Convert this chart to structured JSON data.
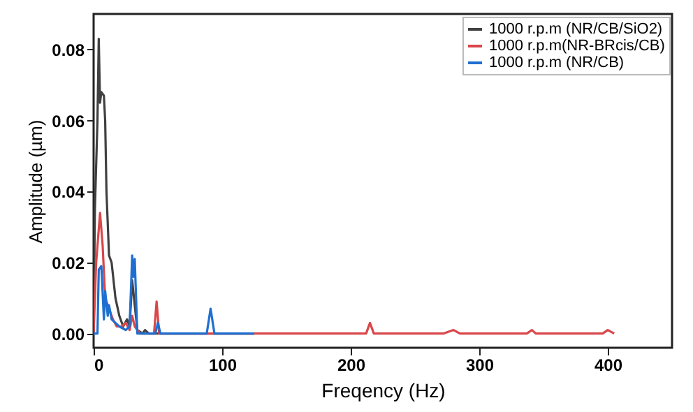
{
  "chart_data": {
    "type": "line",
    "xlabel": "Freqency (Hz)",
    "ylabel": "Amplitude (µm)",
    "xlim": [
      0,
      450
    ],
    "xticks": [
      0,
      100,
      200,
      300,
      400
    ],
    "ylim": [
      -0.004,
      0.09
    ],
    "yticks": [
      {
        "value": 0,
        "label": "0.00"
      },
      {
        "value": 0.02,
        "label": "0.02"
      },
      {
        "value": 0.04,
        "label": "0.04"
      },
      {
        "value": 0.06,
        "label": "0.06"
      },
      {
        "value": 0.08,
        "label": "0.08"
      }
    ],
    "grid": false,
    "legend": "top right",
    "marker": "none",
    "line_style": "solid",
    "series": [
      {
        "name": "1000 r.p.m (NR/CB/SiO2)",
        "color": "#404040",
        "x": [
          0,
          1,
          3,
          4,
          5,
          6,
          8,
          9,
          10,
          12,
          14,
          17,
          20,
          23,
          26,
          28,
          30,
          34,
          38,
          40,
          43,
          125
        ],
        "values": [
          0,
          0.035,
          0.06,
          0.083,
          0.065,
          0.068,
          0.067,
          0.06,
          0.04,
          0.022,
          0.02,
          0.01,
          0.005,
          0.002,
          0.004,
          0.002,
          0.015,
          0.001,
          0,
          0.001,
          0,
          0
        ]
      },
      {
        "name": "1000 r.p.m(NR-BRcis/CB)",
        "color": "#d9474a",
        "x": [
          0,
          2,
          5,
          7,
          9,
          12,
          15,
          18,
          22,
          25,
          28,
          30,
          32,
          36,
          47,
          49,
          51,
          212,
          215,
          218,
          272,
          280,
          285,
          337,
          341,
          344,
          396,
          400,
          405
        ],
        "values": [
          0,
          0.02,
          0.034,
          0.025,
          0.01,
          0.007,
          0.004,
          0.002,
          0.002,
          0.003,
          0.001,
          0.005,
          0.002,
          0,
          0,
          0.009,
          0,
          0,
          0.003,
          0,
          0,
          0.001,
          0,
          0,
          0.001,
          0,
          0,
          0.001,
          0
        ]
      },
      {
        "name": "1000 r.p.m (NR/CB)",
        "color": "#1f6fd0",
        "x": [
          0,
          3,
          4,
          6,
          8,
          9,
          11,
          12,
          14,
          17,
          20,
          25,
          28,
          30,
          31,
          32,
          34,
          48,
          50,
          52,
          88,
          91,
          94,
          125
        ],
        "values": [
          0,
          0,
          0.018,
          0.019,
          0.004,
          0.012,
          0.005,
          0.008,
          0.004,
          0.003,
          0.002,
          0.001,
          0.002,
          0.022,
          0.016,
          0.021,
          0,
          0,
          0.003,
          0,
          0,
          0.007,
          0,
          0
        ]
      }
    ]
  }
}
